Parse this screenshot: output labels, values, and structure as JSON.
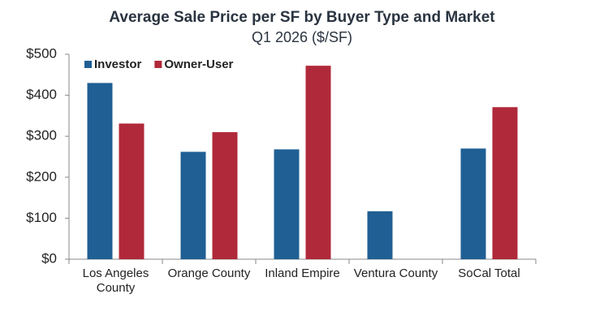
{
  "chart_data": {
    "type": "bar",
    "title": "Average Sale Price per SF by Buyer Type and Market",
    "subtitle": "Q1 2026 ($/SF)",
    "categories": [
      "Los Angeles County",
      "Orange County",
      "Inland Empire",
      "Ventura County",
      "SoCal Total"
    ],
    "series": [
      {
        "name": "Investor",
        "color": "#1f5f94",
        "values": [
          430,
          262,
          268,
          117,
          270
        ]
      },
      {
        "name": "Owner-User",
        "color": "#b0293a",
        "values": [
          331,
          310,
          472,
          null,
          371
        ]
      }
    ],
    "ylim": [
      0,
      500
    ],
    "yticks": [
      {
        "value": 0,
        "label": "$0"
      },
      {
        "value": 100,
        "label": "$100"
      },
      {
        "value": 200,
        "label": "$200"
      },
      {
        "value": 300,
        "label": "$300"
      },
      {
        "value": 400,
        "label": "$400"
      },
      {
        "value": 500,
        "label": "$500"
      }
    ],
    "legend": "top-left"
  }
}
